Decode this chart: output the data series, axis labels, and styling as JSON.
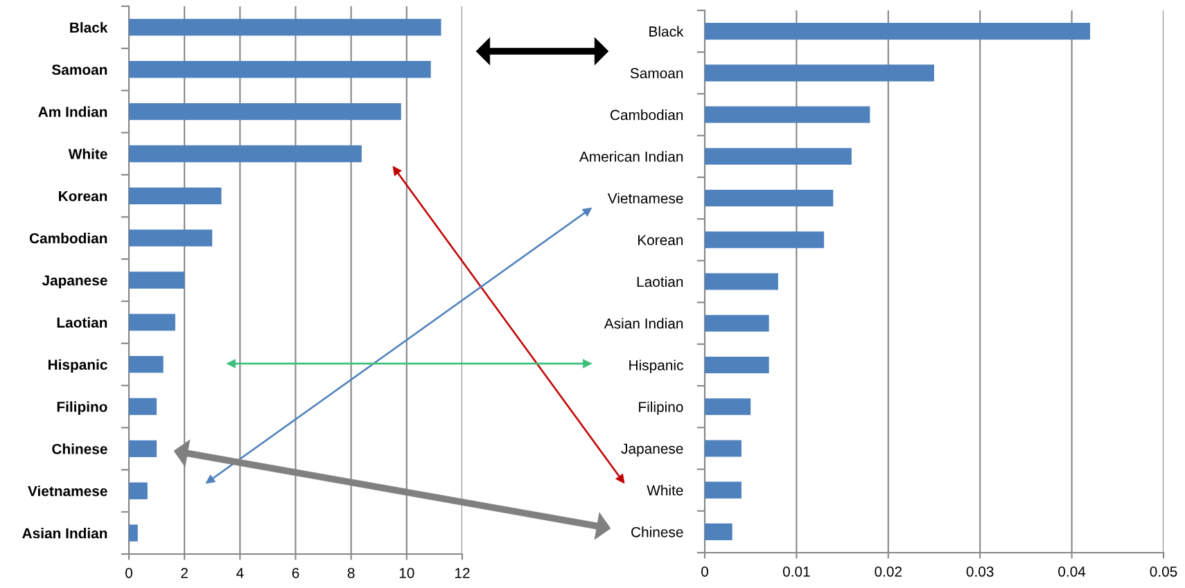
{
  "chart_data": [
    {
      "type": "bar",
      "orientation": "horizontal",
      "categories": [
        "Black",
        "Samoan",
        "Am Indian",
        "White",
        "Korean",
        "Cambodian",
        "Japanese",
        "Laotian",
        "Hispanic",
        "Filipino",
        "Chinese",
        "Vietnamese",
        "Asian Indian"
      ],
      "values": [
        11.24,
        10.87,
        9.8,
        8.38,
        3.33,
        3.0,
        2.0,
        1.67,
        1.24,
        1.0,
        1.0,
        0.67,
        0.32
      ],
      "color": "#4f81bd",
      "xlim": [
        0,
        12
      ],
      "xticks": [
        0,
        2,
        4,
        6,
        8,
        10,
        12
      ],
      "grid": "x"
    },
    {
      "type": "bar",
      "orientation": "horizontal",
      "categories": [
        "Black",
        "Samoan",
        "Cambodian",
        "American Indian",
        "Vietnamese",
        "Korean",
        "Laotian",
        "Asian Indian",
        "Hispanic",
        "Filipino",
        "Japanese",
        "White",
        "Chinese"
      ],
      "values": [
        0.042,
        0.025,
        0.018,
        0.016,
        0.014,
        0.013,
        0.008,
        0.007,
        0.007,
        0.005,
        0.004,
        0.004,
        0.003
      ],
      "color": "#4f81bd",
      "xlim": [
        0,
        0.05
      ],
      "xticks": [
        0,
        0.01,
        0.02,
        0.03,
        0.04,
        0.05
      ],
      "grid": "x"
    }
  ]
}
